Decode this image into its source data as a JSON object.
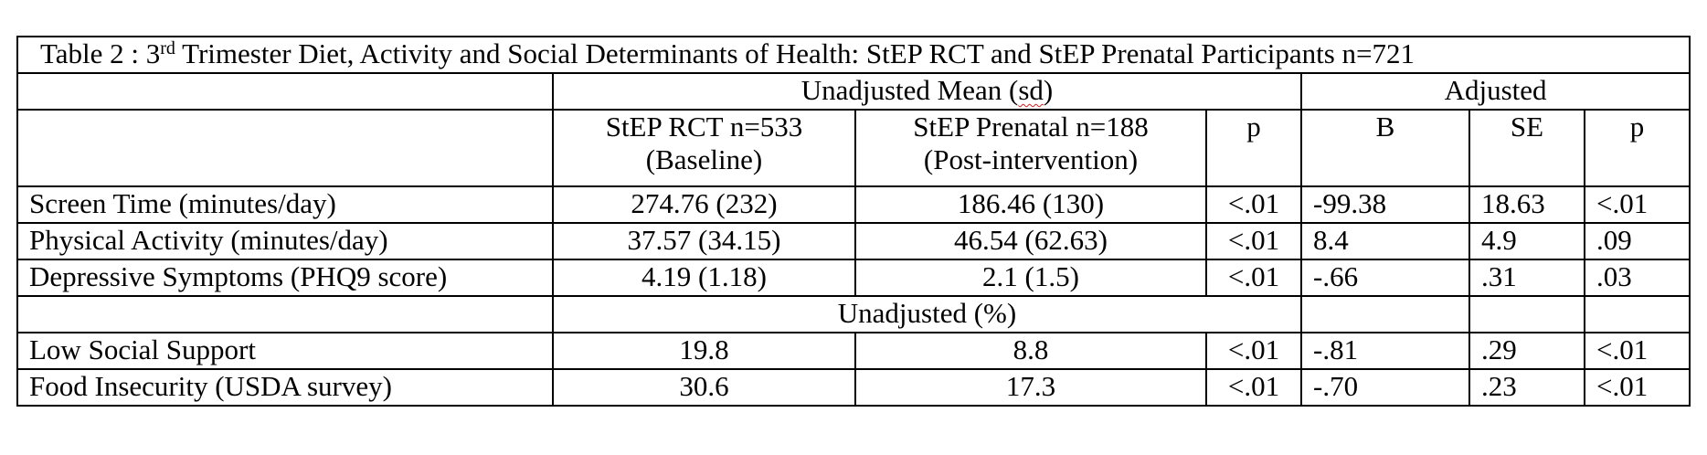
{
  "table": {
    "title_prefix": "Table 2 :  3",
    "title_sup": "rd",
    "title_rest": " Trimester Diet, Activity and Social Determinants of Health: StEP RCT and StEP Prenatal Participants n=721",
    "group_unadjusted_a": "Unadjusted Mean (",
    "group_unadjusted_b": "sd",
    "group_unadjusted_c": ")",
    "group_adjusted": "Adjusted",
    "headers": {
      "rct_line1": "StEP RCT n=533",
      "rct_line2": "(Baseline)",
      "prenatal_line1": "StEP Prenatal n=188",
      "prenatal_line2": "(Post-intervention)",
      "p": "p",
      "b": "B",
      "se": "SE",
      "p_adj": "p"
    },
    "rows_mean": [
      {
        "label": "Screen Time (minutes/day)",
        "rct": "274.76 (232)",
        "prenatal": "186.46 (130)",
        "p": "<.01",
        "b": "-99.38",
        "se": "18.63",
        "p_adj": "<.01"
      },
      {
        "label": "Physical Activity (minutes/day)",
        "rct": "37.57 (34.15)",
        "prenatal": "46.54 (62.63)",
        "p": "<.01",
        "b": "8.4",
        "se": "4.9",
        "p_adj": ".09"
      },
      {
        "label": "Depressive Symptoms (PHQ9 score)",
        "rct": "4.19 (1.18)",
        "prenatal": "2.1 (1.5)",
        "p": "<.01",
        "b": "-.66",
        "se": ".31",
        "p_adj": ".03"
      }
    ],
    "group_percent": "Unadjusted (%)",
    "rows_percent": [
      {
        "label": "Low Social Support",
        "rct": "19.8",
        "prenatal": "8.8",
        "p": "<.01",
        "b": "-.81",
        "se": ".29",
        "p_adj": "<.01"
      },
      {
        "label": "Food Insecurity (USDA survey)",
        "rct": "30.6",
        "prenatal": "17.3",
        "p": "<.01",
        "b": "-.70",
        "se": ".23",
        "p_adj": "<.01"
      }
    ]
  }
}
